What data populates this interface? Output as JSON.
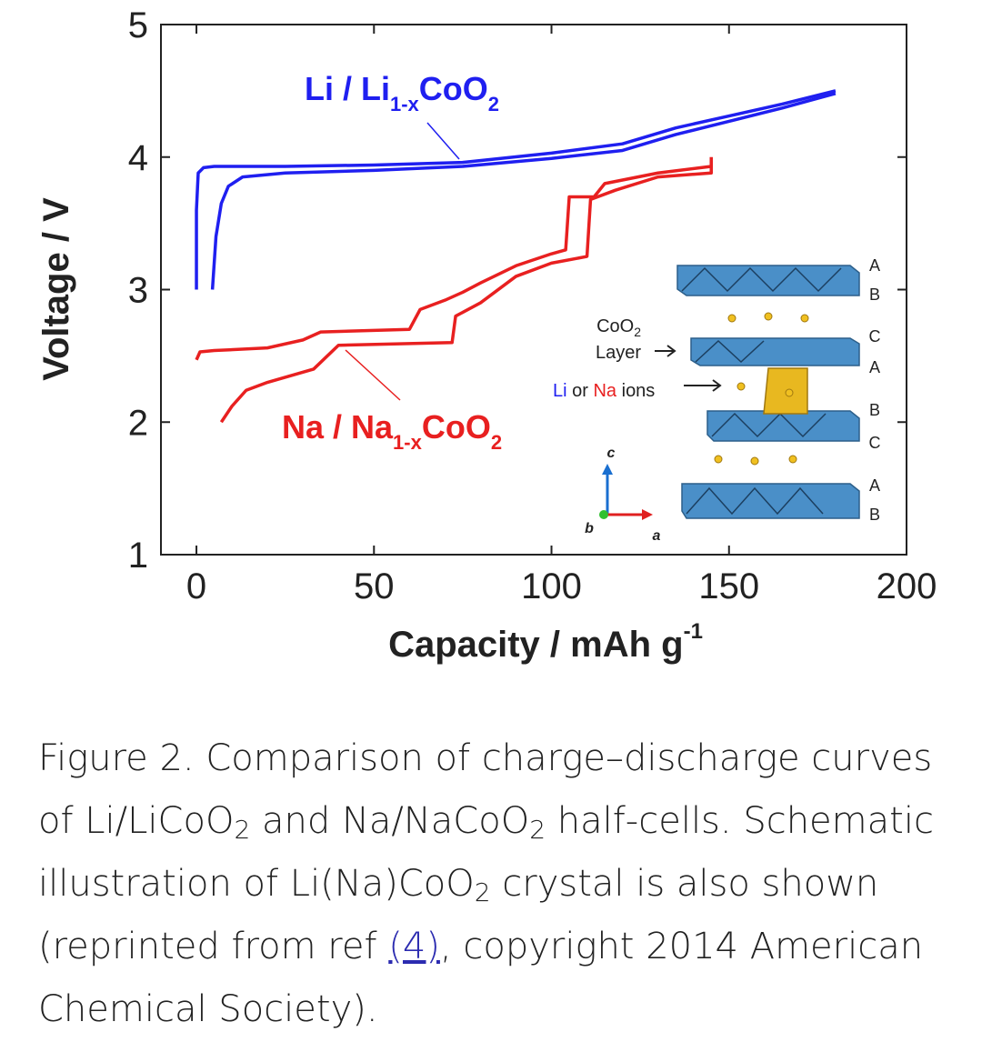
{
  "chart_data": {
    "type": "line",
    "y_label": "Voltage  /  V",
    "x_label": [
      "Capacity  /  mAh g",
      "-1"
    ],
    "xlim": [
      -10,
      200
    ],
    "ylim": [
      1,
      5
    ],
    "xticks": [
      0,
      50,
      100,
      150,
      200
    ],
    "yticks": [
      1,
      2,
      3,
      4,
      5
    ],
    "series": [
      {
        "color": "#1f1ff0",
        "x": [
          0,
          0,
          0.5,
          2,
          5,
          25,
          50,
          75,
          100,
          120,
          135,
          150,
          165,
          180
        ],
        "values": [
          3.0,
          3.6,
          3.88,
          3.92,
          3.93,
          3.93,
          3.94,
          3.96,
          4.03,
          4.1,
          4.22,
          4.31,
          4.4,
          4.5
        ]
      },
      {
        "color": "#1f1ff0",
        "x": [
          4.5,
          5.5,
          7,
          9,
          13,
          25,
          50,
          75,
          100,
          120,
          135,
          150,
          165,
          180
        ],
        "values": [
          3.0,
          3.4,
          3.65,
          3.78,
          3.85,
          3.88,
          3.9,
          3.93,
          3.99,
          4.05,
          4.17,
          4.27,
          4.37,
          4.48
        ]
      },
      {
        "color": "#e82020",
        "x": [
          0,
          1,
          5,
          20,
          30,
          35,
          60,
          63,
          70,
          75,
          80,
          90,
          100,
          104,
          105,
          112,
          115,
          130,
          145,
          145
        ],
        "values": [
          2.47,
          2.53,
          2.54,
          2.56,
          2.62,
          2.68,
          2.7,
          2.85,
          2.92,
          2.98,
          3.05,
          3.18,
          3.27,
          3.3,
          3.7,
          3.7,
          3.8,
          3.88,
          3.93,
          4.0
        ]
      },
      {
        "color": "#e82020",
        "x": [
          7,
          10,
          14,
          20,
          33,
          40,
          72,
          73,
          80,
          90,
          100,
          110,
          111,
          118,
          130,
          145,
          145
        ],
        "values": [
          2.0,
          2.12,
          2.24,
          2.3,
          2.4,
          2.58,
          2.6,
          2.8,
          2.9,
          3.1,
          3.2,
          3.25,
          3.68,
          3.75,
          3.85,
          3.88,
          3.97
        ]
      }
    ],
    "annotations": [
      {
        "parts": [
          "Li / Li",
          "1-x",
          "CoO",
          "2"
        ],
        "color": "#1f1ff0"
      },
      {
        "parts": [
          "Na / Na",
          "1-x",
          "CoO",
          "2"
        ],
        "color": "#e82020"
      }
    ]
  },
  "schematic": {
    "layer_label": [
      "CoO",
      "2",
      "Layer"
    ],
    "ions_label": [
      "Li",
      " or ",
      "Na",
      " ions"
    ],
    "stacking": [
      "A",
      "B",
      "C",
      "A",
      "B",
      "C",
      "A",
      "B"
    ],
    "axes": [
      "c",
      "b",
      "a"
    ]
  },
  "caption": [
    {
      "text": "Figure 2. Comparison of charge–discharge curves of Li/LiCoO"
    },
    {
      "text": "2",
      "style": "sub"
    },
    {
      "text": " and Na/NaCoO"
    },
    {
      "text": "2",
      "style": "sub"
    },
    {
      "text": " half-cells. Schematic illustration of Li(Na)CoO"
    },
    {
      "text": "2",
      "style": "sub"
    },
    {
      "text": " crystal is also shown (reprinted from ref "
    },
    {
      "text": "(4)",
      "style": "link"
    },
    {
      "text": ", copyright 2014 American Chemical Society)."
    }
  ]
}
